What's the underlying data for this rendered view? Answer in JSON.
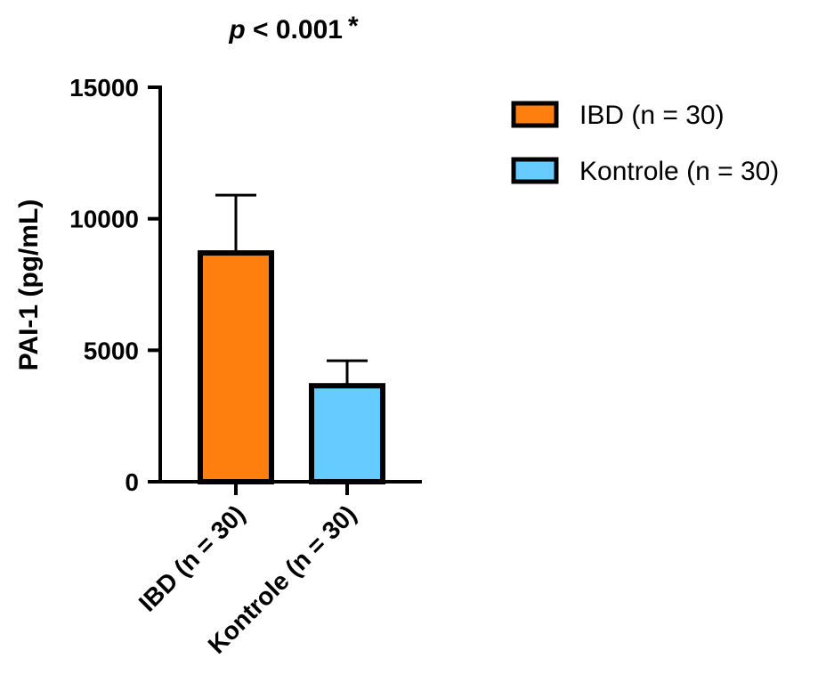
{
  "chart_data": {
    "type": "bar",
    "title_prefix": "p",
    "title_rest": " < 0.001",
    "title_mark": "*",
    "ylabel": "PAI-1 (pg/mL)",
    "ylim": [
      0,
      15000
    ],
    "yticks": [
      "0",
      "5000",
      "10000",
      "15000"
    ],
    "ytick_values": [
      0,
      5000,
      10000,
      15000
    ],
    "categories": [
      "IBD (n = 30)",
      "Kontrole (n = 30)"
    ],
    "values": [
      8700,
      3650
    ],
    "error_upper": [
      10900,
      4600
    ],
    "colors": [
      "#ff7f0e",
      "#66ccff"
    ],
    "legend": {
      "placement": "right",
      "entries": [
        "IBD (n = 30)",
        "Kontrole (n = 30)"
      ]
    },
    "grid": false
  }
}
